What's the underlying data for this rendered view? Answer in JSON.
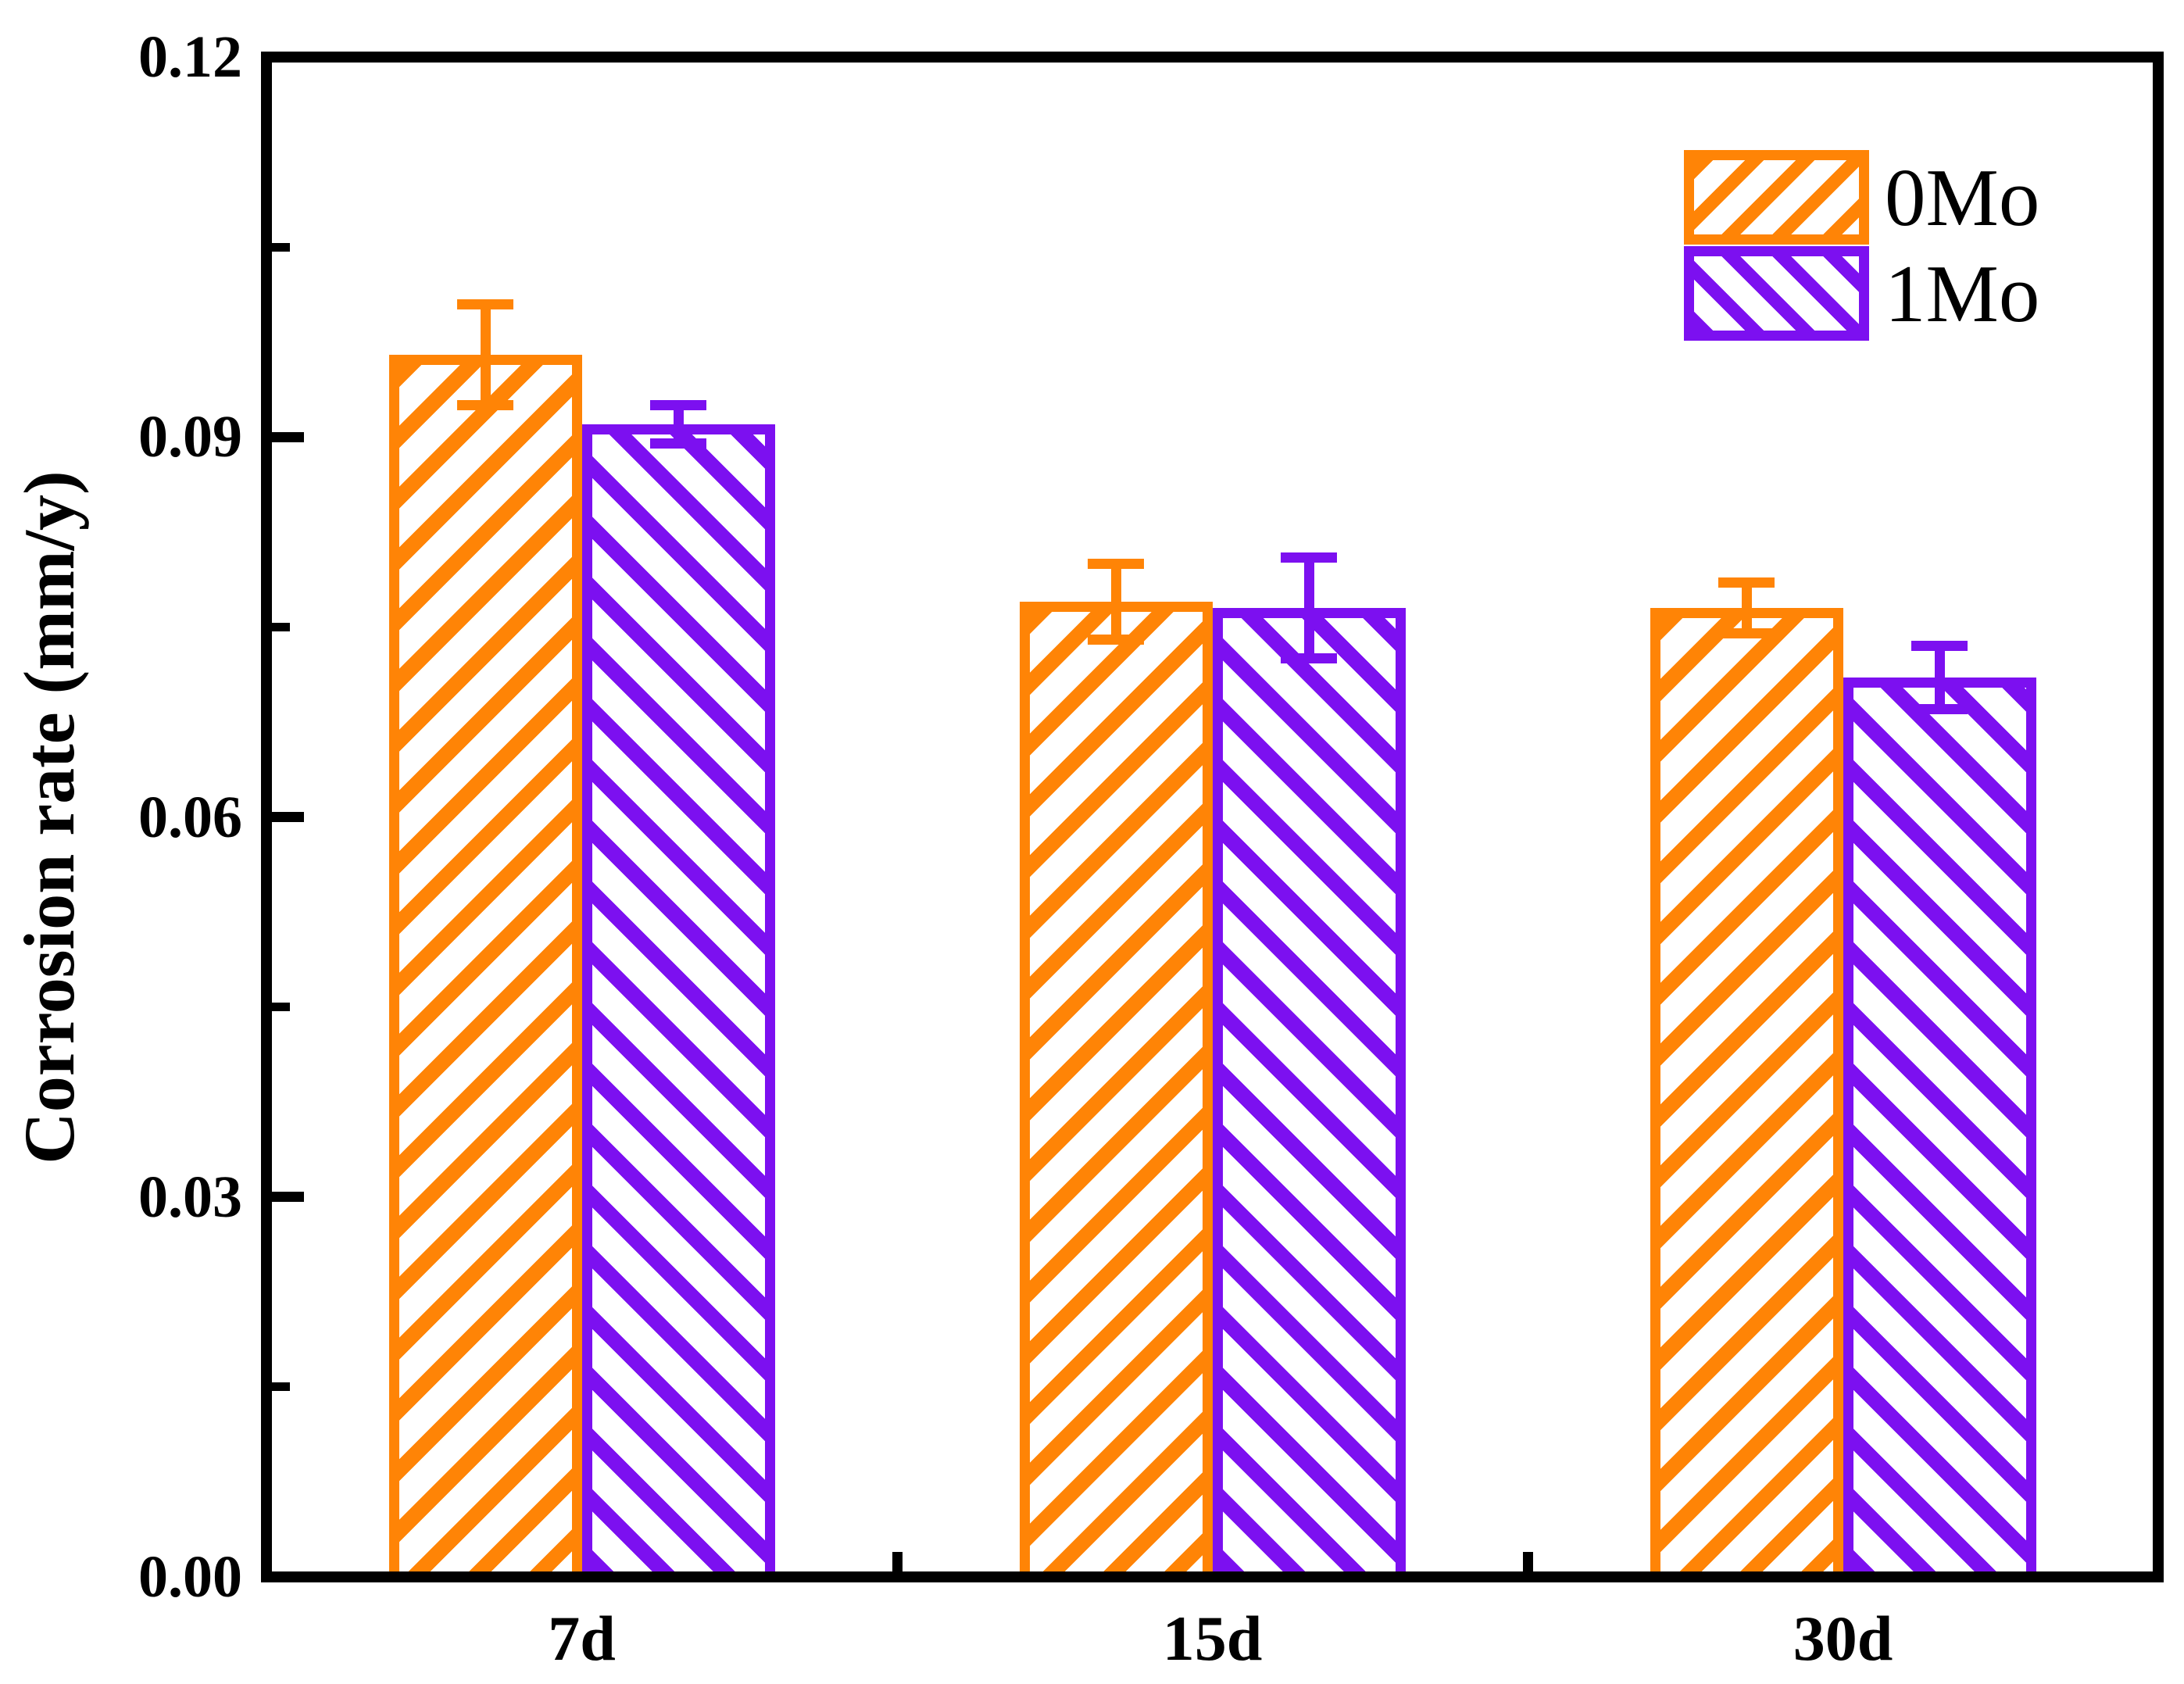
{
  "figure": {
    "background": "#FFFFFF",
    "frame_color": "#000000"
  },
  "chart_data": {
    "type": "bar",
    "categories": [
      "7d",
      "15d",
      "30d"
    ],
    "series": [
      {
        "name": "0Mo",
        "color": "#FF8406",
        "hatch": "/",
        "values": [
          0.0965,
          0.077,
          0.0765
        ],
        "errors": [
          0.004,
          0.003,
          0.002
        ]
      },
      {
        "name": "1Mo",
        "color": "#7C10F0",
        "hatch": "\\",
        "values": [
          0.091,
          0.0765,
          0.071
        ],
        "errors": [
          0.0015,
          0.004,
          0.0025
        ]
      }
    ],
    "title": "",
    "xlabel": "",
    "ylabel": "Corrosion rate (mm/y)",
    "ylim": [
      0,
      0.12
    ],
    "yticks": [
      0.0,
      0.03,
      0.06,
      0.09,
      0.12
    ],
    "ytick_labels": [
      "0.00",
      "0.03",
      "0.06",
      "0.09",
      "0.12"
    ],
    "y_minor_step": 0.015,
    "grid": false,
    "legend": {
      "position": "top-right",
      "entries": [
        "0Mo",
        "1Mo"
      ]
    }
  }
}
